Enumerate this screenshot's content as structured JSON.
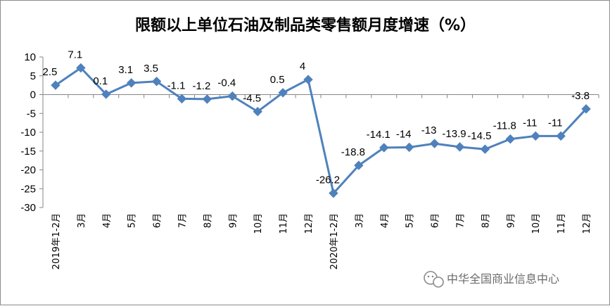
{
  "chart_data": {
    "type": "line",
    "title": "限额以上单位石油及制品类零售额月度增速（%）",
    "ylim": [
      -30,
      10
    ],
    "ytick_step": 5,
    "grid": false,
    "legend": "none",
    "categories": [
      "2019年1-2月",
      "3月",
      "4月",
      "5月",
      "6月",
      "7月",
      "8月",
      "9月",
      "10月",
      "11月",
      "12月",
      "2020年1-2月",
      "3月",
      "4月",
      "5月",
      "6月",
      "7月",
      "8月",
      "9月",
      "10月",
      "11月",
      "12月"
    ],
    "series": [
      {
        "values": [
          2.5,
          7.1,
          0.1,
          3.1,
          3.5,
          -1.1,
          -1.2,
          -0.4,
          -4.5,
          0.5,
          4,
          -26.2,
          -18.8,
          -14.1,
          -14,
          -13,
          -13.9,
          -14.5,
          -11.8,
          -11,
          -11,
          -3.8
        ],
        "labels": [
          "2.5",
          "7.1",
          "0.1",
          "3.1",
          "3.5",
          "-1.1",
          "-1.2",
          "-0.4",
          "-4.5",
          "0.5",
          "4",
          "-26.2",
          "-18.8",
          "-14.1",
          "-14",
          "-13",
          "-13.9",
          "-14.5",
          "-11.8",
          "-11",
          "-11",
          "-3.8"
        ]
      }
    ],
    "colors": {
      "line": "#4f81bd",
      "marker": "#4f81bd",
      "axis": "#868686"
    }
  },
  "watermark": {
    "text": "中华全国商业信息中心",
    "icon": "wechat-icon"
  }
}
